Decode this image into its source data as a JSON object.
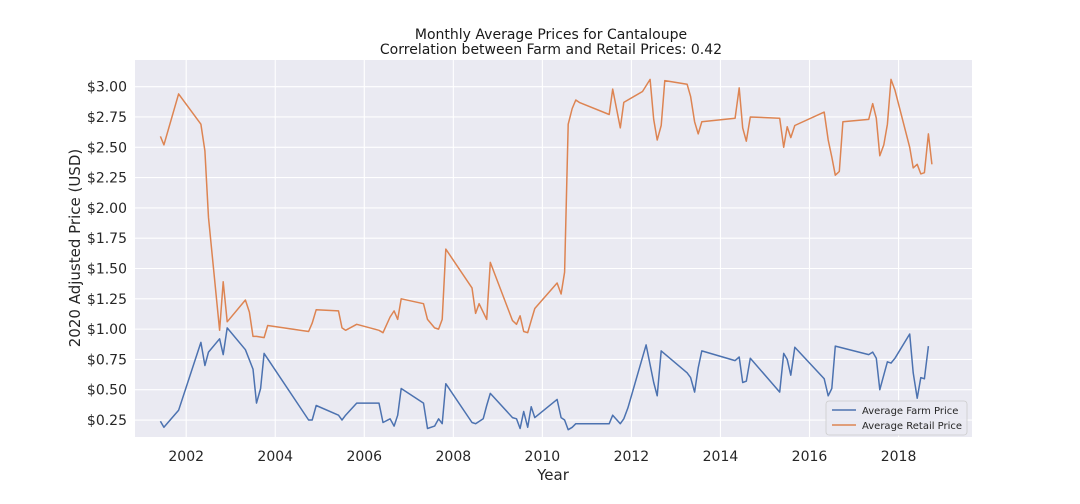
{
  "chart_data": {
    "type": "line",
    "title": "Monthly Average Prices for Cantaloupe",
    "subtitle": "Correlation between Farm and Retail Prices: 0.42",
    "xlabel": "Year",
    "ylabel": "2020 Adjusted Price (USD)",
    "xlim": [
      2000.85,
      2019.65
    ],
    "ylim": [
      0.11,
      3.22
    ],
    "x_ticks": [
      2002,
      2004,
      2006,
      2008,
      2010,
      2012,
      2014,
      2016,
      2018
    ],
    "x_tick_labels": [
      "2002",
      "2004",
      "2006",
      "2008",
      "2010",
      "2012",
      "2014",
      "2016",
      "2018"
    ],
    "y_ticks": [
      0.25,
      0.5,
      0.75,
      1.0,
      1.25,
      1.5,
      1.75,
      2.0,
      2.25,
      2.5,
      2.75,
      3.0
    ],
    "y_tick_labels": [
      "$0.25",
      "$0.50",
      "$0.75",
      "$1.00",
      "$1.25",
      "$1.50",
      "$1.75",
      "$2.00",
      "$2.25",
      "$2.50",
      "$2.75",
      "$3.00"
    ],
    "grid": true,
    "legend_position": "bottom-right",
    "background_color": "#eaeaf2",
    "series": [
      {
        "name": "Average Farm Price",
        "color": "#4c72b0",
        "x": [
          2001.42,
          2001.5,
          2001.83,
          2002.33,
          2002.42,
          2002.5,
          2002.75,
          2002.83,
          2002.92,
          2003.33,
          2003.5,
          2003.58,
          2003.67,
          2003.75,
          2004.75,
          2004.83,
          2004.92,
          2005.42,
          2005.5,
          2005.58,
          2005.83,
          2006.33,
          2006.42,
          2006.58,
          2006.67,
          2006.75,
          2006.83,
          2007.33,
          2007.42,
          2007.58,
          2007.67,
          2007.75,
          2007.83,
          2008.42,
          2008.5,
          2008.67,
          2008.75,
          2008.83,
          2009.33,
          2009.42,
          2009.5,
          2009.58,
          2009.67,
          2009.75,
          2009.83,
          2010.33,
          2010.42,
          2010.5,
          2010.58,
          2010.67,
          2010.75,
          2011.5,
          2011.58,
          2011.75,
          2011.83,
          2011.92,
          2012.33,
          2012.5,
          2012.58,
          2012.67,
          2013.25,
          2013.33,
          2013.42,
          2013.5,
          2013.58,
          2014.33,
          2014.42,
          2014.5,
          2014.58,
          2014.67,
          2015.33,
          2015.42,
          2015.5,
          2015.58,
          2015.67,
          2016.33,
          2016.42,
          2016.5,
          2016.58,
          2017.33,
          2017.42,
          2017.5,
          2017.58,
          2017.75,
          2017.83,
          2017.92,
          2018.25,
          2018.33,
          2018.42,
          2018.5,
          2018.58,
          2018.67
        ],
        "y": [
          0.24,
          0.19,
          0.33,
          0.89,
          0.7,
          0.81,
          0.92,
          0.79,
          1.01,
          0.83,
          0.67,
          0.39,
          0.51,
          0.8,
          0.25,
          0.25,
          0.37,
          0.29,
          0.25,
          0.29,
          0.39,
          0.39,
          0.23,
          0.26,
          0.2,
          0.29,
          0.51,
          0.39,
          0.18,
          0.2,
          0.26,
          0.22,
          0.55,
          0.23,
          0.22,
          0.26,
          0.37,
          0.47,
          0.27,
          0.26,
          0.18,
          0.32,
          0.19,
          0.36,
          0.27,
          0.42,
          0.27,
          0.25,
          0.17,
          0.19,
          0.22,
          0.22,
          0.29,
          0.22,
          0.26,
          0.35,
          0.87,
          0.56,
          0.45,
          0.82,
          0.64,
          0.6,
          0.48,
          0.68,
          0.82,
          0.74,
          0.77,
          0.56,
          0.57,
          0.76,
          0.48,
          0.8,
          0.75,
          0.62,
          0.85,
          0.59,
          0.45,
          0.51,
          0.86,
          0.79,
          0.81,
          0.76,
          0.5,
          0.73,
          0.72,
          0.76,
          0.96,
          0.64,
          0.43,
          0.6,
          0.59,
          0.86
        ]
      },
      {
        "name": "Average Retail Price",
        "color": "#dd8452",
        "x": [
          2001.42,
          2001.5,
          2001.83,
          2002.33,
          2002.42,
          2002.5,
          2002.75,
          2002.83,
          2002.92,
          2003.33,
          2003.42,
          2003.5,
          2003.58,
          2003.75,
          2003.83,
          2004.75,
          2004.83,
          2004.92,
          2005.42,
          2005.5,
          2005.58,
          2005.83,
          2006.33,
          2006.42,
          2006.58,
          2006.67,
          2006.75,
          2006.83,
          2007.33,
          2007.42,
          2007.58,
          2007.67,
          2007.75,
          2007.83,
          2008.42,
          2008.5,
          2008.58,
          2008.75,
          2008.83,
          2009.33,
          2009.42,
          2009.5,
          2009.58,
          2009.67,
          2009.75,
          2009.83,
          2010.33,
          2010.42,
          2010.5,
          2010.58,
          2010.67,
          2010.75,
          2010.83,
          2011.5,
          2011.58,
          2011.75,
          2011.83,
          2012.25,
          2012.42,
          2012.5,
          2012.58,
          2012.67,
          2012.75,
          2013.25,
          2013.33,
          2013.42,
          2013.5,
          2013.58,
          2014.33,
          2014.42,
          2014.5,
          2014.58,
          2014.67,
          2015.33,
          2015.42,
          2015.5,
          2015.58,
          2015.67,
          2016.33,
          2016.42,
          2016.5,
          2016.58,
          2016.67,
          2016.75,
          2017.33,
          2017.42,
          2017.5,
          2017.58,
          2017.67,
          2017.75,
          2017.83,
          2017.92,
          2018.25,
          2018.33,
          2018.42,
          2018.5,
          2018.58,
          2018.67,
          2018.75
        ],
        "y": [
          2.59,
          2.52,
          2.94,
          2.69,
          2.47,
          1.92,
          0.99,
          1.39,
          1.06,
          1.24,
          1.14,
          0.94,
          0.94,
          0.93,
          1.03,
          0.98,
          1.05,
          1.16,
          1.15,
          1.01,
          0.99,
          1.04,
          0.99,
          0.97,
          1.1,
          1.15,
          1.08,
          1.25,
          1.21,
          1.08,
          1.01,
          1.0,
          1.08,
          1.66,
          1.34,
          1.13,
          1.21,
          1.08,
          1.55,
          1.07,
          1.04,
          1.11,
          0.98,
          0.97,
          1.07,
          1.17,
          1.38,
          1.29,
          1.47,
          2.69,
          2.82,
          2.89,
          2.87,
          2.77,
          2.98,
          2.66,
          2.87,
          2.96,
          3.06,
          2.73,
          2.56,
          2.68,
          3.05,
          3.02,
          2.92,
          2.71,
          2.61,
          2.71,
          2.74,
          2.99,
          2.66,
          2.55,
          2.75,
          2.74,
          2.5,
          2.67,
          2.58,
          2.68,
          2.79,
          2.56,
          2.42,
          2.27,
          2.3,
          2.71,
          2.73,
          2.86,
          2.74,
          2.43,
          2.52,
          2.69,
          3.06,
          2.97,
          2.5,
          2.33,
          2.36,
          2.28,
          2.29,
          2.61,
          2.36
        ]
      }
    ]
  }
}
